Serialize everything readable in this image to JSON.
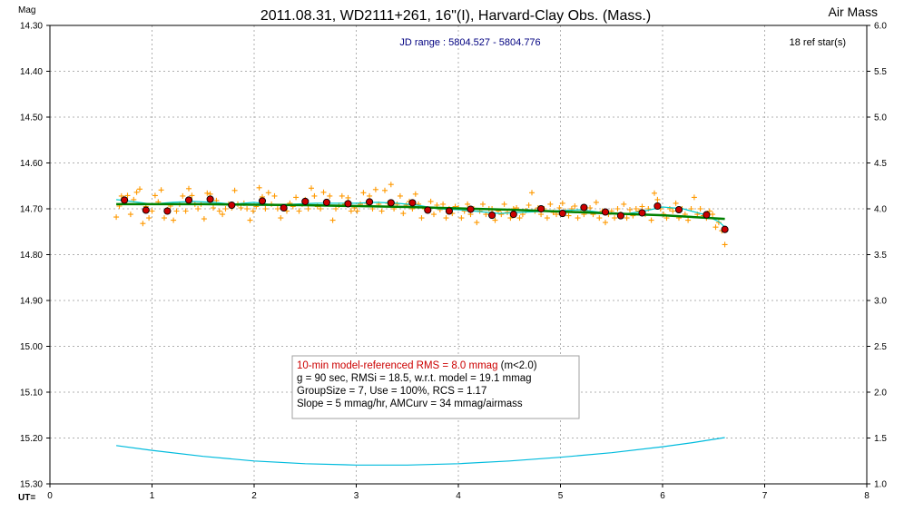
{
  "chart_data": {
    "type": "scatter",
    "title": "2011.08.31, WD2111+261, 16\"(I), Harvard-Clay Obs. (Mass.)",
    "ylabel_left": "Mag",
    "ylabel_right": "Air Mass",
    "xlabel": "UT=",
    "jd_range": "JD range : 5804.527 - 5804.776",
    "ref_stars": "18 ref star(s)",
    "x_ticks": [
      "0",
      "1",
      "2",
      "3",
      "4",
      "5",
      "6",
      "7",
      "8"
    ],
    "y_ticks_left": [
      "14.30",
      "14.40",
      "14.50",
      "14.60",
      "14.70",
      "14.80",
      "14.90",
      "15.00",
      "15.10",
      "15.20",
      "15.30"
    ],
    "y_ticks_right": [
      "6.0",
      "5.5",
      "5.0",
      "4.5",
      "4.0",
      "3.5",
      "3.0",
      "2.5",
      "2.0",
      "1.5",
      "1.0"
    ],
    "xlim": [
      0,
      8
    ],
    "ylim_left": [
      14.3,
      15.3
    ],
    "ylim_right": [
      6.0,
      1.0
    ],
    "grid": true,
    "info_box": {
      "line1_red": "10-min model-referenced RMS = 8.0 mmag",
      "line1_black": " (m<2.0)",
      "line2": "g = 90 sec, RMSi = 18.5, w.r.t. model = 19.1 mmag",
      "line3": "GroupSize = 7, Use = 100%, RCS = 1.17",
      "line4": "Slope = 5 mmag/hr, AMCurv = 34 mmag/airmass"
    },
    "colors": {
      "individual": "#ff9900",
      "group": "#cc0000",
      "model": "#008000",
      "smooth": "#00cccc",
      "airmass": "#00bbdd",
      "grid": "#b0b0b0",
      "jd_text": "#000080",
      "rms_text": "#cc0000"
    },
    "individual_points": [
      [
        0.65,
        14.718
      ],
      [
        0.68,
        14.694
      ],
      [
        0.7,
        14.672
      ],
      [
        0.73,
        14.686
      ],
      [
        0.76,
        14.671
      ],
      [
        0.79,
        14.712
      ],
      [
        0.82,
        14.68
      ],
      [
        0.85,
        14.664
      ],
      [
        0.88,
        14.657
      ],
      [
        0.91,
        14.732
      ],
      [
        0.94,
        14.695
      ],
      [
        0.97,
        14.72
      ],
      [
        1.0,
        14.705
      ],
      [
        1.03,
        14.671
      ],
      [
        1.06,
        14.685
      ],
      [
        1.09,
        14.659
      ],
      [
        1.12,
        14.72
      ],
      [
        1.15,
        14.702
      ],
      [
        1.18,
        14.694
      ],
      [
        1.21,
        14.725
      ],
      [
        1.24,
        14.705
      ],
      [
        1.27,
        14.69
      ],
      [
        1.3,
        14.672
      ],
      [
        1.33,
        14.705
      ],
      [
        1.36,
        14.656
      ],
      [
        1.39,
        14.671
      ],
      [
        1.42,
        14.69
      ],
      [
        1.45,
        14.7
      ],
      [
        1.48,
        14.69
      ],
      [
        1.51,
        14.722
      ],
      [
        1.54,
        14.666
      ],
      [
        1.57,
        14.668
      ],
      [
        1.6,
        14.698
      ],
      [
        1.63,
        14.682
      ],
      [
        1.66,
        14.705
      ],
      [
        1.69,
        14.712
      ],
      [
        1.72,
        14.7
      ],
      [
        1.75,
        14.69
      ],
      [
        1.78,
        14.698
      ],
      [
        1.81,
        14.66
      ],
      [
        1.84,
        14.69
      ],
      [
        1.87,
        14.698
      ],
      [
        1.9,
        14.688
      ],
      [
        1.93,
        14.7
      ],
      [
        1.96,
        14.725
      ],
      [
        1.99,
        14.705
      ],
      [
        2.02,
        14.695
      ],
      [
        2.05,
        14.654
      ],
      [
        2.08,
        14.674
      ],
      [
        2.11,
        14.7
      ],
      [
        2.14,
        14.665
      ],
      [
        2.17,
        14.69
      ],
      [
        2.2,
        14.672
      ],
      [
        2.23,
        14.7
      ],
      [
        2.26,
        14.72
      ],
      [
        2.29,
        14.698
      ],
      [
        2.32,
        14.705
      ],
      [
        2.35,
        14.688
      ],
      [
        2.38,
        14.695
      ],
      [
        2.41,
        14.675
      ],
      [
        2.44,
        14.705
      ],
      [
        2.47,
        14.69
      ],
      [
        2.5,
        14.68
      ],
      [
        2.53,
        14.7
      ],
      [
        2.56,
        14.655
      ],
      [
        2.59,
        14.672
      ],
      [
        2.62,
        14.695
      ],
      [
        2.65,
        14.7
      ],
      [
        2.68,
        14.664
      ],
      [
        2.71,
        14.688
      ],
      [
        2.74,
        14.672
      ],
      [
        2.77,
        14.725
      ],
      [
        2.8,
        14.7
      ],
      [
        2.83,
        14.692
      ],
      [
        2.86,
        14.672
      ],
      [
        2.89,
        14.69
      ],
      [
        2.92,
        14.676
      ],
      [
        2.95,
        14.705
      ],
      [
        2.98,
        14.698
      ],
      [
        3.01,
        14.705
      ],
      [
        3.04,
        14.69
      ],
      [
        3.07,
        14.665
      ],
      [
        3.1,
        14.688
      ],
      [
        3.13,
        14.672
      ],
      [
        3.16,
        14.7
      ],
      [
        3.19,
        14.658
      ],
      [
        3.22,
        14.69
      ],
      [
        3.25,
        14.705
      ],
      [
        3.28,
        14.66
      ],
      [
        3.31,
        14.688
      ],
      [
        3.34,
        14.647
      ],
      [
        3.37,
        14.7
      ],
      [
        3.4,
        14.69
      ],
      [
        3.43,
        14.672
      ],
      [
        3.46,
        14.71
      ],
      [
        3.49,
        14.692
      ],
      [
        3.52,
        14.684
      ],
      [
        3.55,
        14.7
      ],
      [
        3.58,
        14.668
      ],
      [
        3.61,
        14.69
      ],
      [
        3.64,
        14.72
      ],
      [
        3.67,
        14.7
      ],
      [
        3.7,
        14.7
      ],
      [
        3.73,
        14.684
      ],
      [
        3.76,
        14.712
      ],
      [
        3.79,
        14.692
      ],
      [
        3.82,
        14.702
      ],
      [
        3.85,
        14.69
      ],
      [
        3.88,
        14.72
      ],
      [
        3.91,
        14.7
      ],
      [
        3.94,
        14.71
      ],
      [
        3.97,
        14.695
      ],
      [
        4.0,
        14.698
      ],
      [
        4.03,
        14.72
      ],
      [
        4.06,
        14.705
      ],
      [
        4.09,
        14.69
      ],
      [
        4.12,
        14.712
      ],
      [
        4.15,
        14.7
      ],
      [
        4.18,
        14.73
      ],
      [
        4.21,
        14.705
      ],
      [
        4.24,
        14.69
      ],
      [
        4.27,
        14.712
      ],
      [
        4.3,
        14.7
      ],
      [
        4.33,
        14.7
      ],
      [
        4.36,
        14.725
      ],
      [
        4.39,
        14.705
      ],
      [
        4.42,
        14.712
      ],
      [
        4.45,
        14.69
      ],
      [
        4.48,
        14.708
      ],
      [
        4.51,
        14.72
      ],
      [
        4.54,
        14.7
      ],
      [
        4.57,
        14.698
      ],
      [
        4.6,
        14.72
      ],
      [
        4.63,
        14.712
      ],
      [
        4.66,
        14.704
      ],
      [
        4.69,
        14.692
      ],
      [
        4.72,
        14.665
      ],
      [
        4.75,
        14.705
      ],
      [
        4.78,
        14.698
      ],
      [
        4.81,
        14.712
      ],
      [
        4.84,
        14.7
      ],
      [
        4.87,
        14.72
      ],
      [
        4.9,
        14.69
      ],
      [
        4.93,
        14.708
      ],
      [
        4.96,
        14.712
      ],
      [
        4.99,
        14.698
      ],
      [
        5.02,
        14.688
      ],
      [
        5.05,
        14.705
      ],
      [
        5.08,
        14.715
      ],
      [
        5.11,
        14.7
      ],
      [
        5.14,
        14.694
      ],
      [
        5.17,
        14.72
      ],
      [
        5.2,
        14.702
      ],
      [
        5.23,
        14.712
      ],
      [
        5.26,
        14.705
      ],
      [
        5.29,
        14.698
      ],
      [
        5.32,
        14.712
      ],
      [
        5.35,
        14.686
      ],
      [
        5.38,
        14.72
      ],
      [
        5.41,
        14.705
      ],
      [
        5.44,
        14.73
      ],
      [
        5.47,
        14.712
      ],
      [
        5.5,
        14.705
      ],
      [
        5.53,
        14.72
      ],
      [
        5.56,
        14.7
      ],
      [
        5.59,
        14.712
      ],
      [
        5.62,
        14.69
      ],
      [
        5.65,
        14.72
      ],
      [
        5.68,
        14.702
      ],
      [
        5.71,
        14.715
      ],
      [
        5.74,
        14.7
      ],
      [
        5.77,
        14.705
      ],
      [
        5.8,
        14.695
      ],
      [
        5.83,
        14.712
      ],
      [
        5.86,
        14.7
      ],
      [
        5.89,
        14.725
      ],
      [
        5.92,
        14.666
      ],
      [
        5.95,
        14.68
      ],
      [
        5.98,
        14.7
      ],
      [
        6.01,
        14.712
      ],
      [
        6.04,
        14.72
      ],
      [
        6.07,
        14.7
      ],
      [
        6.1,
        14.705
      ],
      [
        6.13,
        14.688
      ],
      [
        6.16,
        14.72
      ],
      [
        6.19,
        14.7
      ],
      [
        6.22,
        14.712
      ],
      [
        6.25,
        14.725
      ],
      [
        6.28,
        14.7
      ],
      [
        6.31,
        14.675
      ],
      [
        6.34,
        14.712
      ],
      [
        6.37,
        14.7
      ],
      [
        6.4,
        14.715
      ],
      [
        6.43,
        14.72
      ],
      [
        6.46,
        14.705
      ],
      [
        6.49,
        14.712
      ],
      [
        6.52,
        14.74
      ],
      [
        6.55,
        14.73
      ],
      [
        6.58,
        14.748
      ],
      [
        6.61,
        14.778
      ]
    ],
    "group_points": [
      [
        0.73,
        14.681
      ],
      [
        0.94,
        14.703
      ],
      [
        1.15,
        14.705
      ],
      [
        1.36,
        14.681
      ],
      [
        1.57,
        14.679
      ],
      [
        1.78,
        14.692
      ],
      [
        2.08,
        14.683
      ],
      [
        2.29,
        14.698
      ],
      [
        2.5,
        14.684
      ],
      [
        2.71,
        14.686
      ],
      [
        2.92,
        14.689
      ],
      [
        3.13,
        14.685
      ],
      [
        3.34,
        14.687
      ],
      [
        3.55,
        14.687
      ],
      [
        3.7,
        14.703
      ],
      [
        3.91,
        14.705
      ],
      [
        4.12,
        14.701
      ],
      [
        4.33,
        14.714
      ],
      [
        4.54,
        14.712
      ],
      [
        4.81,
        14.7
      ],
      [
        5.02,
        14.71
      ],
      [
        5.23,
        14.697
      ],
      [
        5.44,
        14.707
      ],
      [
        5.59,
        14.715
      ],
      [
        5.8,
        14.709
      ],
      [
        5.95,
        14.694
      ],
      [
        6.16,
        14.702
      ],
      [
        6.43,
        14.713
      ],
      [
        6.61,
        14.745
      ]
    ],
    "model_line": [
      [
        0.65,
        14.69
      ],
      [
        1.5,
        14.69
      ],
      [
        2.5,
        14.692
      ],
      [
        3.5,
        14.696
      ],
      [
        4.5,
        14.702
      ],
      [
        5.5,
        14.71
      ],
      [
        6.0,
        14.714
      ],
      [
        6.61,
        14.722
      ]
    ],
    "smooth_curve": [
      [
        0.65,
        14.68
      ],
      [
        0.8,
        14.684
      ],
      [
        1.0,
        14.69
      ],
      [
        1.2,
        14.686
      ],
      [
        1.4,
        14.684
      ],
      [
        1.6,
        14.686
      ],
      [
        1.8,
        14.69
      ],
      [
        2.0,
        14.686
      ],
      [
        2.2,
        14.692
      ],
      [
        2.4,
        14.69
      ],
      [
        2.6,
        14.688
      ],
      [
        2.8,
        14.688
      ],
      [
        3.0,
        14.688
      ],
      [
        3.2,
        14.686
      ],
      [
        3.4,
        14.688
      ],
      [
        3.6,
        14.692
      ],
      [
        3.8,
        14.7
      ],
      [
        4.0,
        14.702
      ],
      [
        4.2,
        14.706
      ],
      [
        4.4,
        14.71
      ],
      [
        4.6,
        14.708
      ],
      [
        4.8,
        14.706
      ],
      [
        5.0,
        14.704
      ],
      [
        5.2,
        14.702
      ],
      [
        5.4,
        14.708
      ],
      [
        5.6,
        14.712
      ],
      [
        5.8,
        14.706
      ],
      [
        6.0,
        14.696
      ],
      [
        6.2,
        14.7
      ],
      [
        6.4,
        14.712
      ],
      [
        6.55,
        14.728
      ],
      [
        6.61,
        14.74
      ]
    ],
    "airmass_curve": [
      [
        0.65,
        1.418
      ],
      [
        1.0,
        1.365
      ],
      [
        1.5,
        1.3
      ],
      [
        2.0,
        1.25
      ],
      [
        2.5,
        1.22
      ],
      [
        3.0,
        1.205
      ],
      [
        3.5,
        1.205
      ],
      [
        4.0,
        1.22
      ],
      [
        4.5,
        1.25
      ],
      [
        5.0,
        1.29
      ],
      [
        5.5,
        1.34
      ],
      [
        6.0,
        1.405
      ],
      [
        6.3,
        1.45
      ],
      [
        6.61,
        1.505
      ]
    ]
  }
}
